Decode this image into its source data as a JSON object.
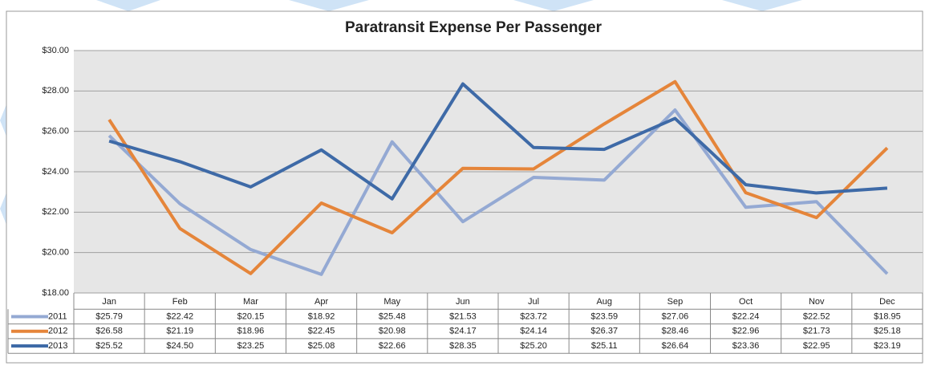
{
  "chart_data": {
    "type": "line",
    "title": "Paratransit Expense Per Passenger",
    "categories": [
      "Jan",
      "Feb",
      "Mar",
      "Apr",
      "May",
      "Jun",
      "Jul",
      "Aug",
      "Sep",
      "Oct",
      "Nov",
      "Dec"
    ],
    "series": [
      {
        "name": "2011",
        "color": "#94a9d3",
        "values": [
          25.79,
          22.42,
          20.15,
          18.92,
          25.48,
          21.53,
          23.72,
          23.59,
          27.06,
          22.24,
          22.52,
          18.95
        ],
        "value_labels": [
          "$25.79",
          "$22.42",
          "$20.15",
          "$18.92",
          "$25.48",
          "$21.53",
          "$23.72",
          "$23.59",
          "$27.06",
          "$22.24",
          "$22.52",
          "$18.95"
        ]
      },
      {
        "name": "2012",
        "color": "#e5853a",
        "values": [
          26.58,
          21.19,
          18.96,
          22.45,
          20.98,
          24.17,
          24.14,
          26.37,
          28.46,
          22.96,
          21.73,
          25.18
        ],
        "value_labels": [
          "$26.58",
          "$21.19",
          "$18.96",
          "$22.45",
          "$20.98",
          "$24.17",
          "$24.14",
          "$26.37",
          "$28.46",
          "$22.96",
          "$21.73",
          "$25.18"
        ]
      },
      {
        "name": "2013",
        "color": "#3e6aa7",
        "values": [
          25.52,
          24.5,
          23.25,
          25.08,
          22.66,
          28.35,
          25.2,
          25.11,
          26.64,
          23.36,
          22.95,
          23.19
        ],
        "value_labels": [
          "$25.52",
          "$24.50",
          "$23.25",
          "$25.08",
          "$22.66",
          "$28.35",
          "$25.20",
          "$25.11",
          "$26.64",
          "$23.36",
          "$22.95",
          "$23.19"
        ]
      }
    ],
    "ylim": [
      18,
      30
    ],
    "yticks": [
      {
        "value": 18,
        "label": "$18.00"
      },
      {
        "value": 20,
        "label": "$20.00"
      },
      {
        "value": 22,
        "label": "$22.00"
      },
      {
        "value": 24,
        "label": "$24.00"
      },
      {
        "value": 26,
        "label": "$26.00"
      },
      {
        "value": 28,
        "label": "$28.00"
      },
      {
        "value": 30,
        "label": "$30.00"
      }
    ],
    "grid": true
  }
}
